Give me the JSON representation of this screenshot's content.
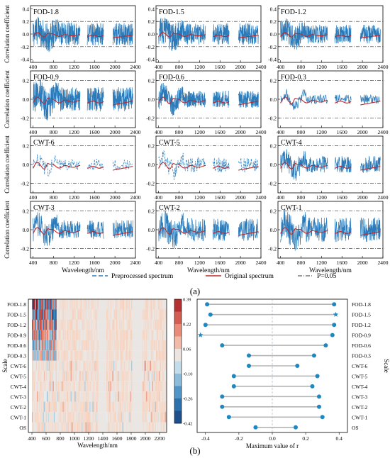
{
  "figure": {
    "part_a_label": "(a)",
    "part_b_label": "(b)"
  },
  "colors": {
    "preprocessed": "#2b7bba",
    "original": "#c0282c",
    "threshold": "#333333",
    "lollipop": "#1f88c0",
    "stem": "#b5b5b5"
  },
  "chart_data": [
    {
      "type": "line",
      "part": "a",
      "description_key": "correlation-curves",
      "panels": [
        "FOD-1.8",
        "FOD-1.5",
        "FOD-1.2",
        "FOD-0.9",
        "FOD-0.6",
        "FOD-0.3",
        "CWT-6",
        "CWT-5",
        "CWT-4",
        "CWT-3",
        "CWT-2",
        "CWT-1"
      ],
      "xlabel": "Wavelength/nm",
      "ylabel": "Correlation coefficient",
      "x_ticks": [
        400,
        800,
        1200,
        1600,
        2000,
        2400
      ],
      "y_ticks": [
        -0.2,
        0,
        0.2
      ],
      "y_tick_labels": [
        "-0.2",
        "0.0",
        "0.2"
      ],
      "top_row_y_ticks": [
        -0.4,
        -0.2,
        0,
        0.2,
        0.4
      ],
      "top_row_y_tick_labels": [
        "-0.4",
        "-0.2",
        "0.0",
        "0.2",
        "0.4"
      ],
      "xlim": [
        350,
        2400
      ],
      "threshold": 0.2,
      "segments": [
        [
          400,
          1320
        ],
        [
          1460,
          1780
        ],
        [
          1960,
          2350
        ]
      ],
      "series": [
        {
          "name": "Preprocessed spectrum"
        },
        {
          "name": "Original spectrum"
        },
        {
          "name": "P=0.05"
        }
      ]
    },
    {
      "type": "heatmap",
      "part": "b-left",
      "ylabel": "Scale",
      "xlabel": "Wavelength/nm",
      "rows": [
        "FOD-1.8",
        "FOD-1.5",
        "FOD-1.2",
        "FOD-0.9",
        "FOD-0.6",
        "FOD-0.3",
        "CWT-6",
        "CWT-5",
        "CWT-4",
        "CWT-3",
        "CWT-2",
        "CWT-1",
        "OS"
      ],
      "x_ticks": [
        400,
        600,
        800,
        1000,
        1200,
        1400,
        1600,
        1800,
        2000,
        2200
      ],
      "xlim": [
        350,
        2300
      ],
      "colorbar_ticks": [
        "0.39",
        "0.22",
        "0.06",
        "-0.10",
        "-0.26",
        "-0.42"
      ],
      "vmin": -0.42,
      "vmax": 0.39
    },
    {
      "type": "scatter",
      "part": "b-right",
      "xlabel": "Maximum value of r",
      "ylabel": "Scale",
      "rows": [
        "FOD-1.8",
        "FOD-1.5",
        "FOD-1.2",
        "FOD-0.9",
        "FOD-0.6",
        "FOD-0.3",
        "CWT-6",
        "CWT-5",
        "CWT-4",
        "CWT-3",
        "CWT-2",
        "CWT-1",
        "OS"
      ],
      "x_ticks": [
        -0.4,
        -0.2,
        0.0,
        0.2,
        0.4
      ],
      "x_tick_labels": [
        "-0.4",
        "-0.2",
        "0.0",
        "0.2",
        "0.4"
      ],
      "xlim": [
        -0.45,
        0.45
      ],
      "min_values": [
        -0.39,
        -0.37,
        -0.4,
        -0.43,
        -0.3,
        -0.14,
        -0.14,
        -0.23,
        -0.23,
        -0.3,
        -0.3,
        -0.26,
        -0.1
      ],
      "max_values": [
        0.37,
        0.38,
        0.37,
        0.36,
        0.32,
        0.25,
        0.15,
        0.27,
        0.24,
        0.28,
        0.28,
        0.3,
        0.14
      ],
      "star_rows": [
        "FOD-1.5",
        "FOD-0.9"
      ]
    }
  ]
}
